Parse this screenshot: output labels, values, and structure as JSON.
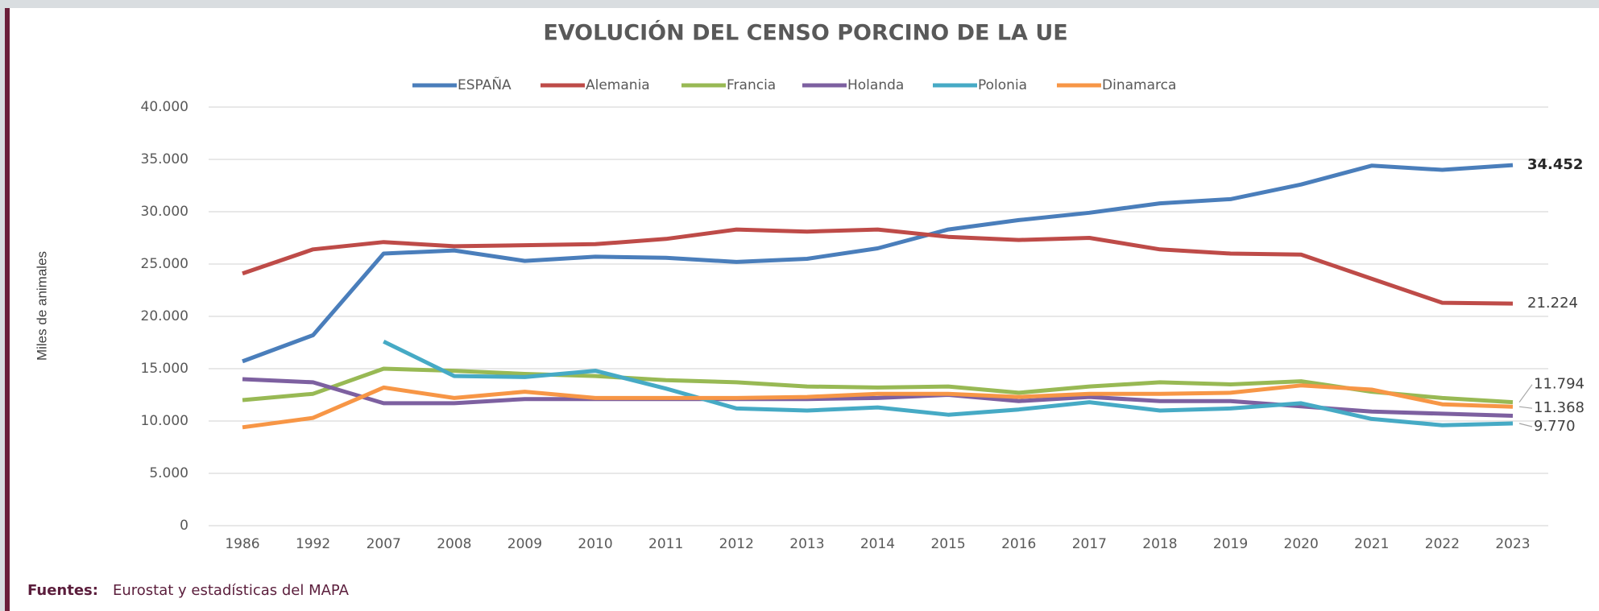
{
  "chart_data": {
    "type": "line",
    "title": "EVOLUCIÓN DEL CENSO PORCINO DE LA UE",
    "y_label": "Miles de animales",
    "source_label": "Fuentes:",
    "source": "Eurostat y estadísticas del MAPA",
    "categories": [
      "1986",
      "1992",
      "2007",
      "2008",
      "2009",
      "2010",
      "2011",
      "2012",
      "2013",
      "2014",
      "2015",
      "2016",
      "2017",
      "2018",
      "2019",
      "2020",
      "2021",
      "2022",
      "2023"
    ],
    "ylim": [
      0,
      40000
    ],
    "yticks": [
      0,
      {
        "value": 5000,
        "label": "5.000"
      },
      {
        "value": 10000,
        "label": "10.000"
      },
      {
        "value": 15000,
        "label": "15.000"
      },
      {
        "value": 20000,
        "label": "20.000"
      },
      {
        "value": 25000,
        "label": "25.000"
      },
      {
        "value": 30000,
        "label": "30.000"
      },
      {
        "value": 35000,
        "label": "35.000"
      },
      {
        "value": 40000,
        "label": "40.000"
      }
    ],
    "grid": true,
    "legend": "top",
    "series": [
      {
        "name": "ESPAÑA",
        "color": "#4a7ebb",
        "values": [
          15700,
          18200,
          26000,
          26300,
          25300,
          25700,
          25600,
          25200,
          25500,
          26500,
          28300,
          29200,
          29900,
          30800,
          31200,
          32600,
          34400,
          34000,
          34452
        ],
        "value_labels": [
          null,
          null,
          null,
          null,
          null,
          null,
          null,
          null,
          null,
          null,
          null,
          null,
          null,
          null,
          null,
          null,
          null,
          null,
          "34.452"
        ]
      },
      {
        "name": "Alemania",
        "color": "#be4b48",
        "values": [
          24100,
          26400,
          27100,
          26700,
          26800,
          26900,
          27400,
          28300,
          28100,
          28300,
          27600,
          27300,
          27500,
          26400,
          26000,
          25900,
          23600,
          21300,
          21224
        ],
        "value_labels": [
          null,
          null,
          null,
          null,
          null,
          null,
          null,
          null,
          null,
          null,
          null,
          null,
          null,
          null,
          null,
          null,
          null,
          null,
          "21.224"
        ]
      },
      {
        "name": "Francia",
        "color": "#98b954",
        "values": [
          12000,
          12600,
          15000,
          14800,
          14500,
          14300,
          13900,
          13700,
          13300,
          13200,
          13300,
          12700,
          13300,
          13700,
          13500,
          13800,
          12800,
          12200,
          11794
        ],
        "value_labels": [
          null,
          null,
          null,
          null,
          null,
          null,
          null,
          null,
          null,
          null,
          null,
          null,
          null,
          null,
          null,
          null,
          null,
          null,
          "11.794"
        ]
      },
      {
        "name": "Holanda",
        "color": "#7d60a0",
        "values": [
          14000,
          13700,
          11700,
          11700,
          12100,
          12100,
          12100,
          12100,
          12100,
          12200,
          12500,
          11900,
          12300,
          11900,
          11900,
          11400,
          10900,
          10700,
          10500
        ]
      },
      {
        "name": "Polonia",
        "color": "#46aac5",
        "values": [
          null,
          null,
          17600,
          14300,
          14200,
          14800,
          13100,
          11200,
          11000,
          11300,
          10600,
          11100,
          11800,
          11000,
          11200,
          11700,
          10200,
          9600,
          9770
        ],
        "value_labels": [
          null,
          null,
          null,
          null,
          null,
          null,
          null,
          null,
          null,
          null,
          null,
          null,
          null,
          null,
          null,
          null,
          null,
          null,
          "9.770"
        ]
      },
      {
        "name": "Dinamarca",
        "color": "#f79646",
        "values": [
          9400,
          10300,
          13200,
          12200,
          12800,
          12200,
          12200,
          12200,
          12300,
          12600,
          12600,
          12300,
          12600,
          12600,
          12700,
          13400,
          13000,
          11600,
          11368
        ],
        "value_labels": [
          null,
          null,
          null,
          null,
          null,
          null,
          null,
          null,
          null,
          null,
          null,
          null,
          null,
          null,
          null,
          null,
          null,
          null,
          "11.368"
        ]
      }
    ]
  }
}
